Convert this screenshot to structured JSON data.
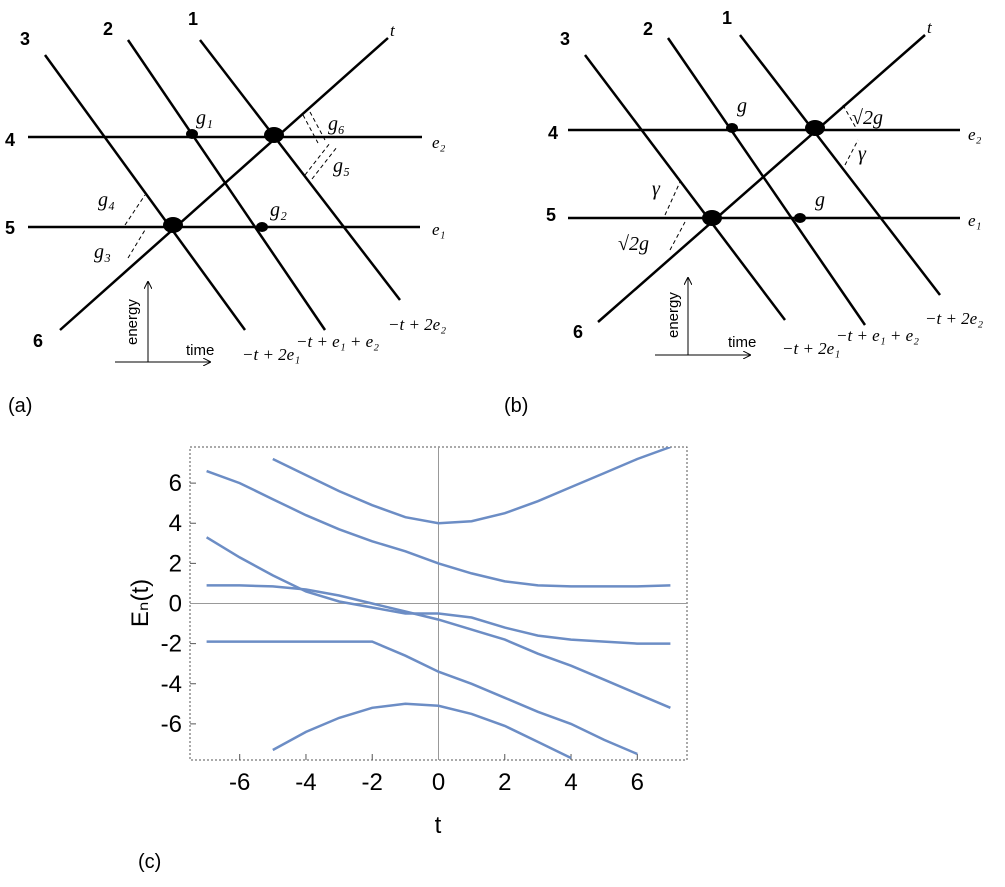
{
  "panel_a": {
    "label": "(a)",
    "line_labels": [
      "1",
      "2",
      "3",
      "4",
      "5",
      "6"
    ],
    "axis_labels": [
      "t",
      "e₂",
      "e₁"
    ],
    "couplings": [
      "g₁",
      "g₆",
      "g₅",
      "g₄",
      "g₂",
      "g₃"
    ],
    "energy_label": "energy",
    "time_label": "time",
    "asymptotes": [
      "−t + 2e₁",
      "−t + e₁ + e₂",
      "−t + 2e₂"
    ]
  },
  "panel_b": {
    "label": "(b)",
    "line_labels": [
      "1",
      "2",
      "3",
      "4",
      "5",
      "6"
    ],
    "axis_labels": [
      "t",
      "e₂",
      "e₁"
    ],
    "couplings": [
      "g",
      "√2g",
      "γ",
      "γ",
      "g",
      "√2g"
    ],
    "energy_label": "energy",
    "time_label": "time",
    "asymptotes": [
      "−t + 2e₁",
      "−t + e₁ + e₂",
      "−t + 2e₂"
    ]
  },
  "chart_data": {
    "type": "line",
    "panel_label": "(c)",
    "x_label": "t",
    "y_label": "Eₙ(t)",
    "x": [
      -7,
      -6,
      -5,
      -4,
      -3,
      -2,
      -1,
      0,
      1,
      2,
      3,
      4,
      5,
      6,
      7
    ],
    "series": [
      {
        "color": "#6c8dc5",
        "values": [
          null,
          null,
          7.2,
          6.4,
          5.6,
          4.9,
          4.3,
          4.0,
          4.1,
          4.5,
          5.1,
          5.8,
          6.5,
          7.2,
          7.8
        ]
      },
      {
        "color": "#6c8dc5",
        "values": [
          6.6,
          6.0,
          5.2,
          4.4,
          3.7,
          3.1,
          2.6,
          2.0,
          1.5,
          1.1,
          0.9,
          0.85,
          0.85,
          0.85,
          0.9
        ]
      },
      {
        "color": "#6c8dc5",
        "values": [
          3.3,
          2.3,
          1.4,
          0.6,
          0.1,
          -0.2,
          -0.5,
          -0.5,
          -0.7,
          -1.2,
          -1.6,
          -1.8,
          -1.9,
          -2.0,
          -2.0
        ]
      },
      {
        "color": "#6c8dc5",
        "values": [
          0.9,
          0.9,
          0.85,
          0.7,
          0.4,
          0.0,
          -0.4,
          -0.8,
          -1.3,
          -1.8,
          -2.5,
          -3.1,
          -3.8,
          -4.5,
          -5.2
        ]
      },
      {
        "color": "#6c8dc5",
        "values": [
          -1.9,
          -1.9,
          -1.9,
          -1.9,
          -1.9,
          -1.9,
          -2.6,
          -3.4,
          -4.0,
          -4.7,
          -5.4,
          -6.0,
          -6.8,
          -7.5,
          null
        ]
      },
      {
        "color": "#6c8dc5",
        "values": [
          null,
          null,
          -7.3,
          -6.4,
          -5.7,
          -5.2,
          -5.0,
          -5.1,
          -5.5,
          -6.1,
          -6.9,
          -7.7,
          null,
          null,
          null
        ]
      }
    ],
    "xlim": [
      -7.5,
      7.5
    ],
    "ylim": [
      -7.8,
      7.8
    ],
    "xticks": [
      -6,
      -4,
      -2,
      0,
      2,
      4,
      6
    ],
    "yticks": [
      -6,
      -4,
      -2,
      0,
      2,
      4,
      6
    ],
    "zero_lines": true
  }
}
